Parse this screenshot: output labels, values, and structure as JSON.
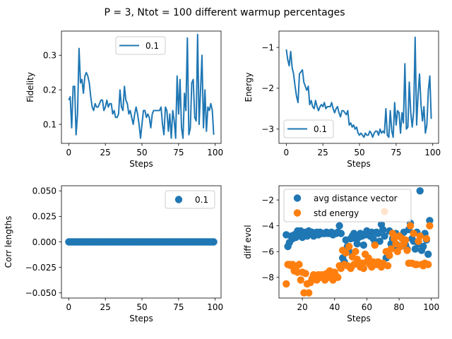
{
  "figure_title": "P = 3, Ntot = 100 different warmup percentages",
  "colors": {
    "blue": "#1f77b4",
    "orange": "#ff7f0e"
  },
  "chart_data": [
    {
      "id": "fidelity",
      "type": "line",
      "xlabel": "Steps",
      "ylabel": "Fidelity",
      "xlim": [
        -5,
        104
      ],
      "ylim": [
        0.045,
        0.37
      ],
      "xticks": [
        0,
        25,
        50,
        75,
        100
      ],
      "yticks": [
        0.1,
        0.2,
        0.3
      ],
      "ytick_labels": [
        "0.1",
        "0.2",
        "0.3"
      ],
      "legend": {
        "position": "upper-center",
        "entries": [
          {
            "label": "0.1",
            "marker": "line"
          }
        ]
      },
      "series": [
        {
          "name": "0.1",
          "x": [
            0,
            1,
            2,
            3,
            4,
            5,
            6,
            7,
            8,
            9,
            10,
            11,
            12,
            13,
            14,
            15,
            16,
            17,
            18,
            19,
            20,
            21,
            22,
            23,
            24,
            25,
            26,
            27,
            28,
            29,
            30,
            31,
            32,
            33,
            34,
            35,
            36,
            37,
            38,
            39,
            40,
            41,
            42,
            43,
            44,
            45,
            46,
            47,
            48,
            49,
            50,
            51,
            52,
            53,
            54,
            55,
            56,
            57,
            58,
            59,
            60,
            61,
            62,
            63,
            64,
            65,
            66,
            67,
            68,
            69,
            70,
            71,
            72,
            73,
            74,
            75,
            76,
            77,
            78,
            79,
            80,
            81,
            82,
            83,
            84,
            85,
            86,
            87,
            88,
            89,
            90,
            91,
            92,
            93,
            94,
            95,
            96,
            97,
            98,
            99
          ],
          "y": [
            0.17,
            0.18,
            0.09,
            0.21,
            0.21,
            0.07,
            0.13,
            0.32,
            0.22,
            0.23,
            0.19,
            0.24,
            0.25,
            0.24,
            0.22,
            0.18,
            0.15,
            0.14,
            0.16,
            0.15,
            0.15,
            0.16,
            0.17,
            0.17,
            0.14,
            0.15,
            0.17,
            0.15,
            0.16,
            0.16,
            0.13,
            0.14,
            0.12,
            0.12,
            0.13,
            0.2,
            0.15,
            0.14,
            0.21,
            0.17,
            0.16,
            0.13,
            0.14,
            0.12,
            0.1,
            0.13,
            0.15,
            0.13,
            0.1,
            0.06,
            0.1,
            0.14,
            0.14,
            0.12,
            0.13,
            0.12,
            0.09,
            0.13,
            0.14,
            0.14,
            0.14,
            0.14,
            0.14,
            0.15,
            0.1,
            0.07,
            0.15,
            0.14,
            0.08,
            0.13,
            0.06,
            0.14,
            0.11,
            0.06,
            0.24,
            0.13,
            0.23,
            0.09,
            0.06,
            0.19,
            0.14,
            0.35,
            0.07,
            0.09,
            0.22,
            0.23,
            0.12,
            0.11,
            0.36,
            0.1,
            0.2,
            0.3,
            0.09,
            0.2,
            0.08,
            0.15,
            0.14,
            0.16,
            0.14,
            0.07
          ]
        }
      ]
    },
    {
      "id": "energy",
      "type": "line",
      "xlabel": "Steps",
      "ylabel": "Energy",
      "xlim": [
        -5,
        104
      ],
      "ylim": [
        -3.35,
        -0.6
      ],
      "xticks": [
        0,
        25,
        50,
        75,
        100
      ],
      "yticks": [
        -3,
        -2,
        -1
      ],
      "ytick_labels": [
        "−3",
        "−2",
        "−1"
      ],
      "legend": {
        "position": "lower-left",
        "entries": [
          {
            "label": "0.1",
            "marker": "line"
          }
        ]
      },
      "series": [
        {
          "name": "0.1",
          "x": [
            0,
            1,
            2,
            3,
            4,
            5,
            6,
            7,
            8,
            9,
            10,
            11,
            12,
            13,
            14,
            15,
            16,
            17,
            18,
            19,
            20,
            21,
            22,
            23,
            24,
            25,
            26,
            27,
            28,
            29,
            30,
            31,
            32,
            33,
            34,
            35,
            36,
            37,
            38,
            39,
            40,
            41,
            42,
            43,
            44,
            45,
            46,
            47,
            48,
            49,
            50,
            51,
            52,
            53,
            54,
            55,
            56,
            57,
            58,
            59,
            60,
            61,
            62,
            63,
            64,
            65,
            66,
            67,
            68,
            69,
            70,
            71,
            72,
            73,
            74,
            75,
            76,
            77,
            78,
            79,
            80,
            81,
            82,
            83,
            84,
            85,
            86,
            87,
            88,
            89,
            90,
            91,
            92,
            93,
            94,
            95,
            96,
            97,
            98,
            99
          ],
          "y": [
            -1.05,
            -1.3,
            -1.45,
            -1.1,
            -1.5,
            -1.65,
            -1.95,
            -2.2,
            -2.35,
            -1.65,
            -1.6,
            -1.55,
            -1.85,
            -1.95,
            -2.05,
            -1.95,
            -2.4,
            -2.3,
            -2.45,
            -2.5,
            -2.3,
            -2.45,
            -2.55,
            -2.45,
            -2.4,
            -2.45,
            -2.35,
            -2.5,
            -2.45,
            -2.45,
            -2.45,
            -2.35,
            -2.5,
            -2.6,
            -2.5,
            -2.45,
            -2.6,
            -2.7,
            -2.55,
            -2.55,
            -2.6,
            -2.65,
            -2.55,
            -2.9,
            -2.85,
            -2.95,
            -2.9,
            -3.0,
            -2.95,
            -3.1,
            -3.15,
            -3.1,
            -3.15,
            -3.2,
            -3.1,
            -3.15,
            -3.15,
            -3.05,
            -3.1,
            -3.2,
            -3.1,
            -3.05,
            -3.05,
            -3.15,
            -3.0,
            -3.1,
            -3.05,
            -3.1,
            -2.5,
            -3.15,
            -3.2,
            -2.55,
            -3.05,
            -3.2,
            -2.35,
            -2.9,
            -2.55,
            -2.6,
            -3.1,
            -2.6,
            -2.85,
            -1.4,
            -3.0,
            -2.95,
            -1.85,
            -2.6,
            -2.95,
            -2.55,
            -0.75,
            -2.9,
            -2.15,
            -1.65,
            -2.4,
            -2.8,
            -2.45,
            -3.1,
            -2.9,
            -2.05,
            -1.7,
            -2.75
          ]
        }
      ]
    },
    {
      "id": "corr",
      "type": "scatter",
      "xlabel": "Steps",
      "ylabel": "Corr lengths",
      "xlim": [
        -5,
        104
      ],
      "ylim": [
        -0.055,
        0.055
      ],
      "xticks": [
        0,
        25,
        50,
        75,
        100
      ],
      "yticks": [
        -0.05,
        -0.025,
        0,
        0.025,
        0.05
      ],
      "ytick_labels": [
        "−0.050",
        "−0.025",
        "0.000",
        "0.025",
        "0.050"
      ],
      "legend": {
        "position": "upper-right",
        "entries": [
          {
            "label": "0.1",
            "marker": "dot"
          }
        ]
      },
      "series": [
        {
          "name": "0.1",
          "x": [
            0,
            1,
            2,
            3,
            4,
            5,
            6,
            7,
            8,
            9,
            10,
            11,
            12,
            13,
            14,
            15,
            16,
            17,
            18,
            19,
            20,
            21,
            22,
            23,
            24,
            25,
            26,
            27,
            28,
            29,
            30,
            31,
            32,
            33,
            34,
            35,
            36,
            37,
            38,
            39,
            40,
            41,
            42,
            43,
            44,
            45,
            46,
            47,
            48,
            49,
            50,
            51,
            52,
            53,
            54,
            55,
            56,
            57,
            58,
            59,
            60,
            61,
            62,
            63,
            64,
            65,
            66,
            67,
            68,
            69,
            70,
            71,
            72,
            73,
            74,
            75,
            76,
            77,
            78,
            79,
            80,
            81,
            82,
            83,
            84,
            85,
            86,
            87,
            88,
            89,
            90,
            91,
            92,
            93,
            94,
            95,
            96,
            97,
            98,
            99
          ],
          "y": [
            0,
            0,
            0,
            0,
            0,
            0,
            0,
            0,
            0,
            0,
            0,
            0,
            0,
            0,
            0,
            0,
            0,
            0,
            0,
            0,
            0,
            0,
            0,
            0,
            0,
            0,
            0,
            0,
            0,
            0,
            0,
            0,
            0,
            0,
            0,
            0,
            0,
            0,
            0,
            0,
            0,
            0,
            0,
            0,
            0,
            0,
            0,
            0,
            0,
            0,
            0,
            0,
            0,
            0,
            0,
            0,
            0,
            0,
            0,
            0,
            0,
            0,
            0,
            0,
            0,
            0,
            0,
            0,
            0,
            0,
            0,
            0,
            0,
            0,
            0,
            0,
            0,
            0,
            0,
            0,
            0,
            0,
            0,
            0,
            0,
            0,
            0,
            0,
            0,
            0,
            0,
            0,
            0,
            0,
            0,
            0,
            0,
            0,
            0,
            0
          ]
        }
      ]
    },
    {
      "id": "diff",
      "type": "scatter",
      "xlabel": "Steps",
      "ylabel": "diff evol",
      "xlim": [
        5.5,
        104.5
      ],
      "ylim": [
        -9.6,
        -0.9
      ],
      "xticks": [
        20,
        40,
        60,
        80,
        100
      ],
      "yticks": [
        -8,
        -6,
        -4,
        -2
      ],
      "ytick_labels": [
        "−8",
        "−6",
        "−4",
        "−2"
      ],
      "legend": {
        "position": "upper-left",
        "entries": [
          {
            "label": "avg distance vector",
            "marker": "dot"
          },
          {
            "label": "std energy",
            "marker": "dot"
          }
        ]
      },
      "series": [
        {
          "name": "avg distance vector",
          "x": [
            10,
            11,
            12,
            13,
            14,
            15,
            16,
            17,
            18,
            19,
            20,
            21,
            22,
            23,
            24,
            25,
            26,
            27,
            28,
            29,
            30,
            31,
            32,
            33,
            34,
            35,
            36,
            37,
            38,
            39,
            40,
            41,
            42,
            43,
            44,
            45,
            46,
            47,
            48,
            49,
            50,
            51,
            52,
            53,
            54,
            55,
            56,
            57,
            58,
            59,
            60,
            61,
            62,
            63,
            64,
            65,
            66,
            67,
            68,
            69,
            70,
            71,
            72,
            73,
            74,
            75,
            76,
            77,
            78,
            79,
            80,
            81,
            82,
            83,
            84,
            85,
            86,
            87,
            88,
            89,
            90,
            91,
            92,
            93,
            94,
            95,
            96,
            97,
            98,
            99
          ],
          "y": [
            -4.7,
            -5.6,
            -5.3,
            -4.8,
            -5.0,
            -4.7,
            -4.9,
            -4.4,
            -4.5,
            -4.4,
            -4.9,
            -4.6,
            -4.5,
            -4.8,
            -4.4,
            -4.6,
            -4.5,
            -4.8,
            -4.6,
            -4.5,
            -4.7,
            -4.5,
            -4.6,
            -4.6,
            -4.6,
            -4.5,
            -4.6,
            -4.6,
            -4.5,
            -4.7,
            -4.6,
            -4.6,
            -4.5,
            -4.0,
            -4.6,
            -6.5,
            -6.8,
            -5.1,
            -5.6,
            -6.0,
            -5.0,
            -4.8,
            -4.6,
            -5.0,
            -5.4,
            -4.9,
            -4.6,
            -4.8,
            -5.5,
            -4.7,
            -4.4,
            -4.6,
            -4.8,
            -4.5,
            -5.0,
            -5.4,
            -4.5,
            -4.6,
            -5.2,
            -3.9,
            -4.3,
            -4.8,
            -6.5,
            -6.1,
            -4.4,
            -5.4,
            -5.0,
            -5.6,
            -4.6,
            -5.5,
            -4.8,
            -5.6,
            -5.0,
            -4.5,
            -5.5,
            -5.8,
            -4.3,
            -3.8,
            -5.0,
            -5.2,
            -5.8,
            -4.5,
            -5.4,
            -1.3,
            -5.9,
            -5.6,
            -4.6,
            -5.1,
            -6.2,
            -3.6
          ]
        },
        {
          "name": "std energy",
          "x": [
            10,
            11,
            12,
            13,
            14,
            15,
            16,
            17,
            18,
            19,
            20,
            21,
            22,
            23,
            24,
            25,
            26,
            27,
            28,
            29,
            30,
            31,
            32,
            33,
            34,
            35,
            36,
            37,
            38,
            39,
            40,
            41,
            42,
            43,
            44,
            45,
            46,
            47,
            48,
            49,
            50,
            51,
            52,
            53,
            54,
            55,
            56,
            57,
            58,
            59,
            60,
            61,
            62,
            63,
            64,
            65,
            66,
            67,
            68,
            69,
            70,
            71,
            72,
            73,
            74,
            75,
            76,
            77,
            78,
            79,
            80,
            81,
            82,
            83,
            84,
            85,
            86,
            87,
            88,
            89,
            90,
            91,
            92,
            93,
            94,
            95,
            96,
            97,
            98,
            99
          ],
          "y": [
            -8.5,
            -7.0,
            -7.0,
            -7.1,
            -7.0,
            -7.5,
            -7.2,
            -7.6,
            -7.0,
            -8.2,
            -7.6,
            -9.2,
            -7.7,
            -8.5,
            -9.2,
            -8.4,
            -8.1,
            -7.8,
            -8.1,
            -8.2,
            -7.8,
            -8.0,
            -7.8,
            -8.0,
            -8.2,
            -7.7,
            -8.0,
            -7.5,
            -7.7,
            -8.2,
            -7.6,
            -7.9,
            -8.0,
            -7.1,
            -7.3,
            -5.9,
            -7.0,
            -6.1,
            -7.1,
            -5.6,
            -7.3,
            -6.4,
            -7.0,
            -6.0,
            -6.6,
            -7.0,
            -7.2,
            -6.9,
            -7.3,
            -6.2,
            -6.8,
            -6.5,
            -7.0,
            -7.2,
            -6.8,
            -5.5,
            -7.0,
            -6.8,
            -7.0,
            -7.2,
            -6.9,
            -2.9,
            -6.0,
            -7.1,
            -6.3,
            -5.8,
            -4.6,
            -5.0,
            -5.4,
            -6.0,
            -4.8,
            -5.6,
            -5.0,
            -5.4,
            -5.1,
            -5.9,
            -6.9,
            -4.0,
            -6.9,
            -4.6,
            -7.0,
            -7.0,
            -5.2,
            -4.8,
            -7.0,
            -7.1,
            -6.9,
            -5.0,
            -7.0,
            -4.0
          ]
        }
      ]
    }
  ]
}
